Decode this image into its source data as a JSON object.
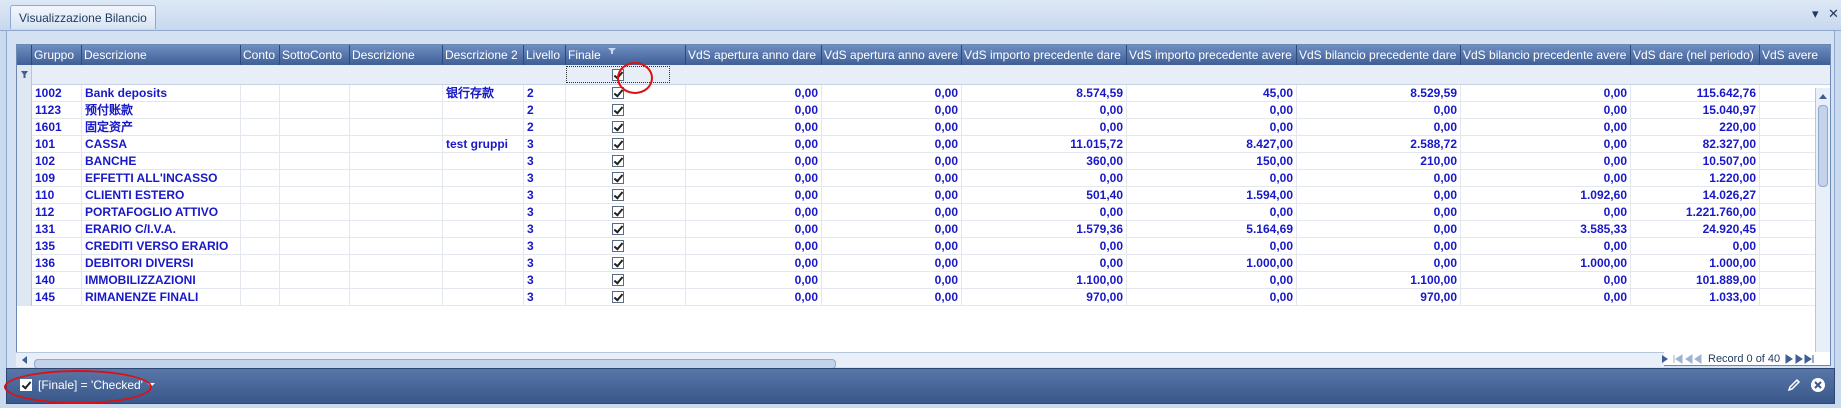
{
  "window": {
    "tab_title": "Visualizzazione Bilancio",
    "pin_glyph": "▾",
    "close_glyph": "✕"
  },
  "columns": [
    {
      "key": "gruppo",
      "label": "Gruppo",
      "width": 50
    },
    {
      "key": "descrizione",
      "label": "Descrizione",
      "width": 159
    },
    {
      "key": "conto",
      "label": "Conto",
      "width": 39
    },
    {
      "key": "sottoconto",
      "label": "SottoConto",
      "width": 70
    },
    {
      "key": "descrizione_b",
      "label": "Descrizione",
      "width": 93
    },
    {
      "key": "descrizione2",
      "label": "Descrizione 2",
      "width": 81
    },
    {
      "key": "livello",
      "label": "Livello",
      "width": 42
    },
    {
      "key": "finale",
      "label": "Finale",
      "width": 120
    },
    {
      "key": "apertura_dare",
      "label": "VdS apertura anno dare",
      "width": 136
    },
    {
      "key": "apertura_avere",
      "label": "VdS apertura anno avere",
      "width": 140
    },
    {
      "key": "imp_prec_dare",
      "label": "VdS importo precedente dare",
      "width": 165
    },
    {
      "key": "imp_prec_avere",
      "label": "VdS importo precedente avere",
      "width": 170
    },
    {
      "key": "bil_prec_dare",
      "label": "VdS bilancio precedente dare",
      "width": 164
    },
    {
      "key": "bil_prec_avere",
      "label": "VdS bilancio precedente avere",
      "width": 170
    },
    {
      "key": "dare_periodo",
      "label": "VdS dare (nel periodo)",
      "width": 129
    },
    {
      "key": "avere",
      "label": "VdS avere",
      "width": 72
    }
  ],
  "rows": [
    {
      "gruppo": "1002",
      "descrizione": "Bank deposits",
      "conto": "",
      "sottoconto": "",
      "descrizione_b": "",
      "descrizione2": "银行存款",
      "livello": "2",
      "finale": true,
      "apertura_dare": "0,00",
      "apertura_avere": "0,00",
      "imp_prec_dare": "8.574,59",
      "imp_prec_avere": "45,00",
      "bil_prec_dare": "8.529,59",
      "bil_prec_avere": "0,00",
      "dare_periodo": "115.642,76",
      "avere": ""
    },
    {
      "gruppo": "1123",
      "descrizione": "预付账款",
      "conto": "",
      "sottoconto": "",
      "descrizione_b": "",
      "descrizione2": "",
      "livello": "2",
      "finale": true,
      "apertura_dare": "0,00",
      "apertura_avere": "0,00",
      "imp_prec_dare": "0,00",
      "imp_prec_avere": "0,00",
      "bil_prec_dare": "0,00",
      "bil_prec_avere": "0,00",
      "dare_periodo": "15.040,97",
      "avere": ""
    },
    {
      "gruppo": "1601",
      "descrizione": "固定资产",
      "conto": "",
      "sottoconto": "",
      "descrizione_b": "",
      "descrizione2": "",
      "livello": "2",
      "finale": true,
      "apertura_dare": "0,00",
      "apertura_avere": "0,00",
      "imp_prec_dare": "0,00",
      "imp_prec_avere": "0,00",
      "bil_prec_dare": "0,00",
      "bil_prec_avere": "0,00",
      "dare_periodo": "220,00",
      "avere": ""
    },
    {
      "gruppo": "101",
      "descrizione": "CASSA",
      "conto": "",
      "sottoconto": "",
      "descrizione_b": "",
      "descrizione2": "test gruppi",
      "livello": "3",
      "finale": true,
      "apertura_dare": "0,00",
      "apertura_avere": "0,00",
      "imp_prec_dare": "11.015,72",
      "imp_prec_avere": "8.427,00",
      "bil_prec_dare": "2.588,72",
      "bil_prec_avere": "0,00",
      "dare_periodo": "82.327,00",
      "avere": ""
    },
    {
      "gruppo": "102",
      "descrizione": "BANCHE",
      "conto": "",
      "sottoconto": "",
      "descrizione_b": "",
      "descrizione2": "",
      "livello": "3",
      "finale": true,
      "apertura_dare": "0,00",
      "apertura_avere": "0,00",
      "imp_prec_dare": "360,00",
      "imp_prec_avere": "150,00",
      "bil_prec_dare": "210,00",
      "bil_prec_avere": "0,00",
      "dare_periodo": "10.507,00",
      "avere": ""
    },
    {
      "gruppo": "109",
      "descrizione": "EFFETTI ALL'INCASSO",
      "conto": "",
      "sottoconto": "",
      "descrizione_b": "",
      "descrizione2": "",
      "livello": "3",
      "finale": true,
      "apertura_dare": "0,00",
      "apertura_avere": "0,00",
      "imp_prec_dare": "0,00",
      "imp_prec_avere": "0,00",
      "bil_prec_dare": "0,00",
      "bil_prec_avere": "0,00",
      "dare_periodo": "1.220,00",
      "avere": ""
    },
    {
      "gruppo": "110",
      "descrizione": "CLIENTI ESTERO",
      "conto": "",
      "sottoconto": "",
      "descrizione_b": "",
      "descrizione2": "",
      "livello": "3",
      "finale": true,
      "apertura_dare": "0,00",
      "apertura_avere": "0,00",
      "imp_prec_dare": "501,40",
      "imp_prec_avere": "1.594,00",
      "bil_prec_dare": "0,00",
      "bil_prec_avere": "1.092,60",
      "dare_periodo": "14.026,27",
      "avere": ""
    },
    {
      "gruppo": "112",
      "descrizione": "PORTAFOGLIO ATTIVO",
      "conto": "",
      "sottoconto": "",
      "descrizione_b": "",
      "descrizione2": "",
      "livello": "3",
      "finale": true,
      "apertura_dare": "0,00",
      "apertura_avere": "0,00",
      "imp_prec_dare": "0,00",
      "imp_prec_avere": "0,00",
      "bil_prec_dare": "0,00",
      "bil_prec_avere": "0,00",
      "dare_periodo": "1.221.760,00",
      "avere": ""
    },
    {
      "gruppo": "131",
      "descrizione": "ERARIO C/I.V.A.",
      "conto": "",
      "sottoconto": "",
      "descrizione_b": "",
      "descrizione2": "",
      "livello": "3",
      "finale": true,
      "apertura_dare": "0,00",
      "apertura_avere": "0,00",
      "imp_prec_dare": "1.579,36",
      "imp_prec_avere": "5.164,69",
      "bil_prec_dare": "0,00",
      "bil_prec_avere": "3.585,33",
      "dare_periodo": "24.920,45",
      "avere": ""
    },
    {
      "gruppo": "135",
      "descrizione": "CREDITI VERSO ERARIO",
      "conto": "",
      "sottoconto": "",
      "descrizione_b": "",
      "descrizione2": "",
      "livello": "3",
      "finale": true,
      "apertura_dare": "0,00",
      "apertura_avere": "0,00",
      "imp_prec_dare": "0,00",
      "imp_prec_avere": "0,00",
      "bil_prec_dare": "0,00",
      "bil_prec_avere": "0,00",
      "dare_periodo": "0,00",
      "avere": ""
    },
    {
      "gruppo": "136",
      "descrizione": "DEBITORI DIVERSI",
      "conto": "",
      "sottoconto": "",
      "descrizione_b": "",
      "descrizione2": "",
      "livello": "3",
      "finale": true,
      "apertura_dare": "0,00",
      "apertura_avere": "0,00",
      "imp_prec_dare": "0,00",
      "imp_prec_avere": "1.000,00",
      "bil_prec_dare": "0,00",
      "bil_prec_avere": "1.000,00",
      "dare_periodo": "1.000,00",
      "avere": ""
    },
    {
      "gruppo": "140",
      "descrizione": "IMMOBILIZZAZIONI",
      "conto": "",
      "sottoconto": "",
      "descrizione_b": "",
      "descrizione2": "",
      "livello": "3",
      "finale": true,
      "apertura_dare": "0,00",
      "apertura_avere": "0,00",
      "imp_prec_dare": "1.100,00",
      "imp_prec_avere": "0,00",
      "bil_prec_dare": "1.100,00",
      "bil_prec_avere": "0,00",
      "dare_periodo": "101.889,00",
      "avere": ""
    },
    {
      "gruppo": "145",
      "descrizione": "RIMANENZE FINALI",
      "conto": "",
      "sottoconto": "",
      "descrizione_b": "",
      "descrizione2": "",
      "livello": "3",
      "finale": true,
      "apertura_dare": "0,00",
      "apertura_avere": "0,00",
      "imp_prec_dare": "970,00",
      "imp_prec_avere": "0,00",
      "bil_prec_dare": "970,00",
      "bil_prec_avere": "0,00",
      "dare_periodo": "1.033,00",
      "avere": ""
    }
  ],
  "filter_row": {
    "finale_checked": true
  },
  "navigator": {
    "record_text": "Record 0 of 40"
  },
  "footer": {
    "filter_text": "[Finale] = 'Checked'"
  },
  "colors": {
    "text_blue": "#1818c8",
    "header_dark": "#3e5e96",
    "annotation_red": "#e01010"
  }
}
